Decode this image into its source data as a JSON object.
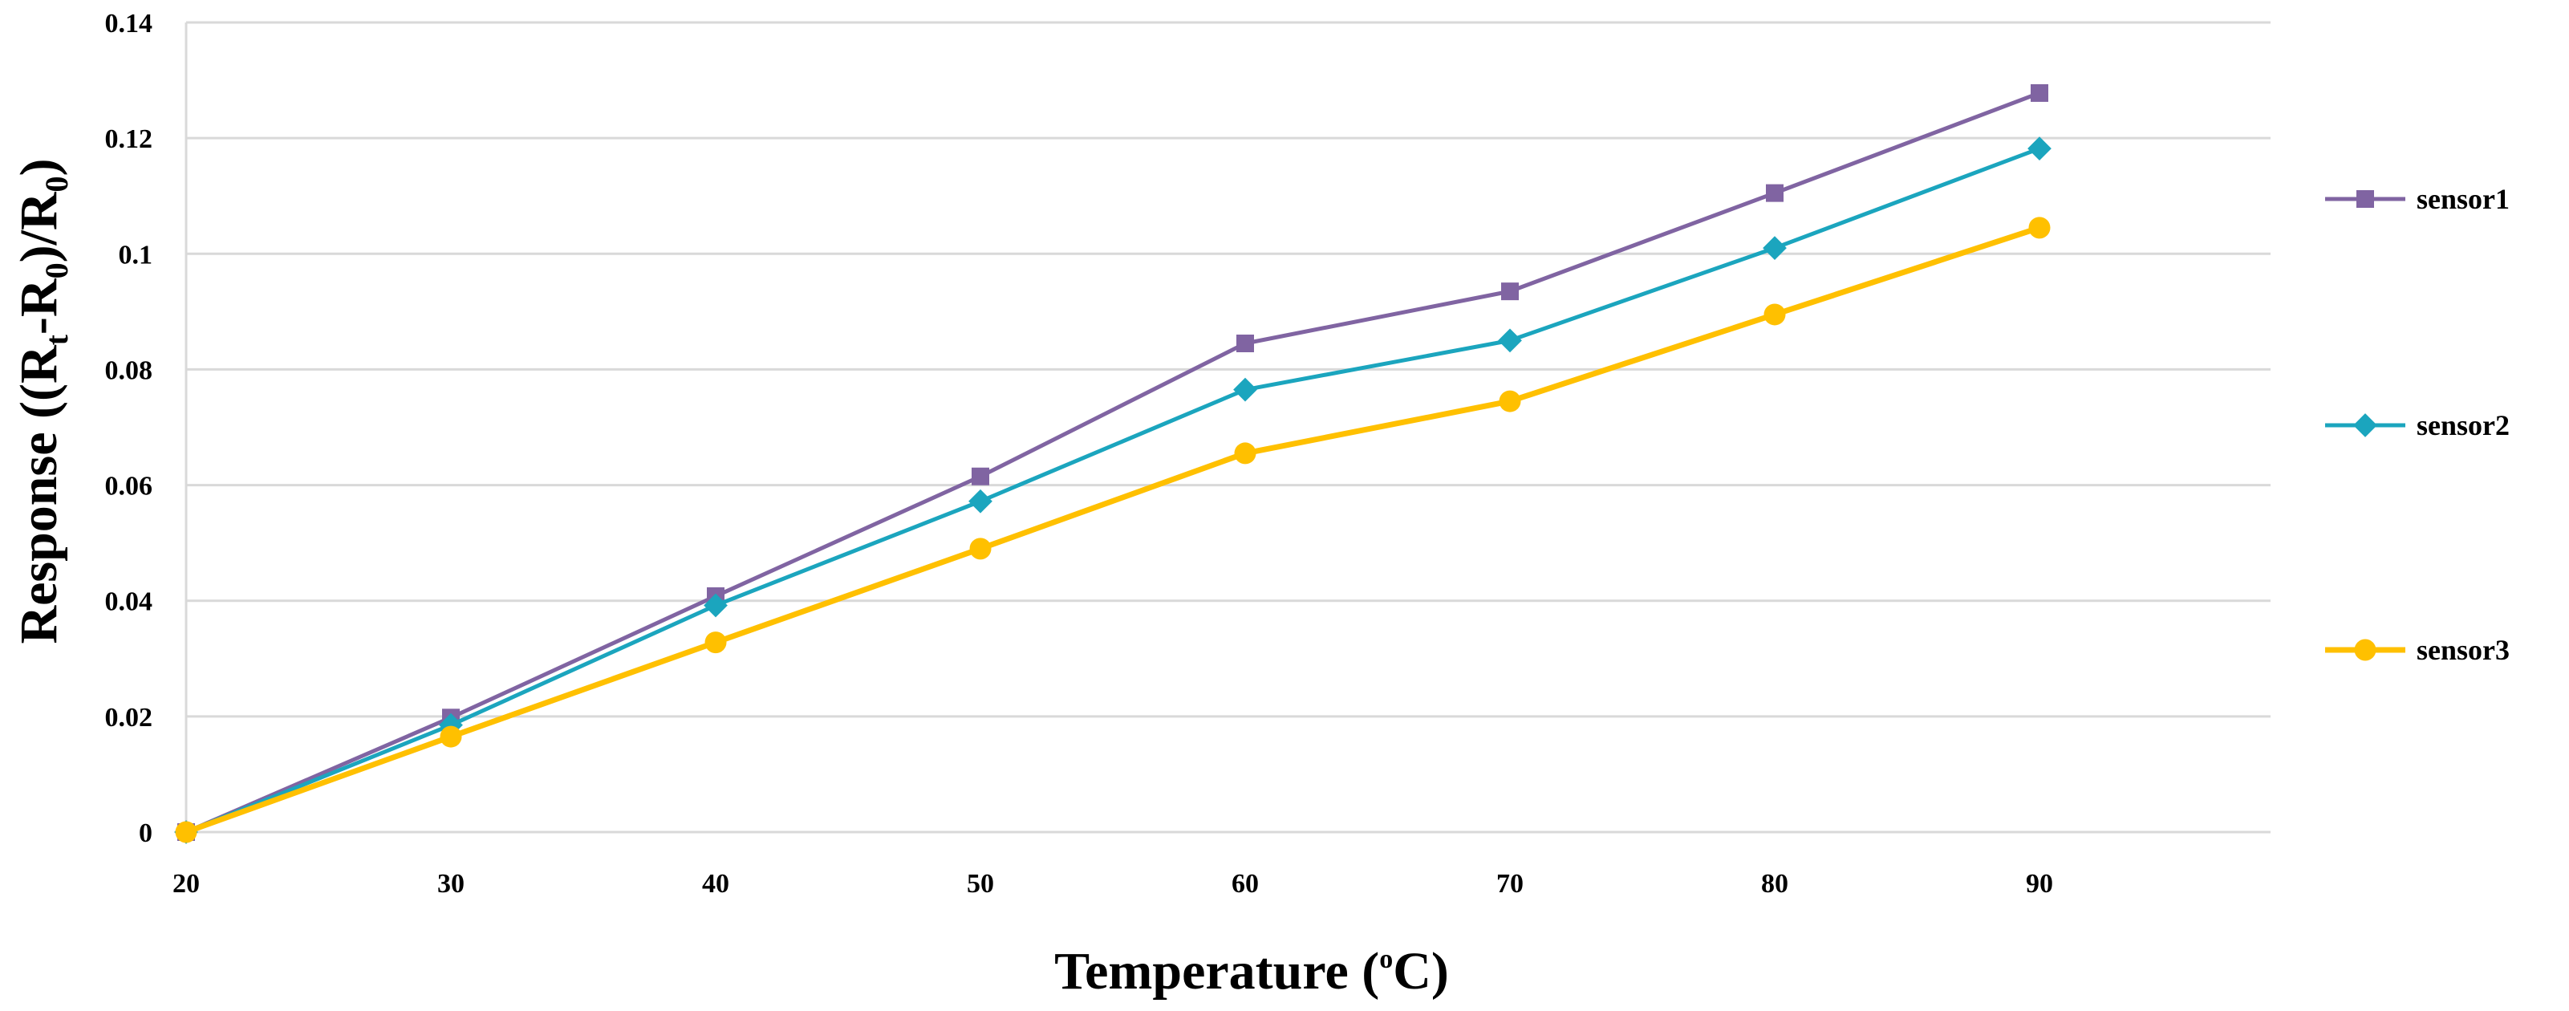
{
  "chart_data": {
    "type": "line",
    "title": "",
    "xlabel": {
      "prefix": "Temperature (",
      "degree": "o",
      "unit": "C",
      "suffix": ")"
    },
    "ylabel": {
      "text": "Response ((R",
      "sub1": "t",
      "mid": "-R",
      "sub2": "0",
      "mid2": ")/R",
      "sub3": "0",
      "end": ")"
    },
    "x_ticks": [
      "20",
      "30",
      "40",
      "50",
      "60",
      "70",
      "80",
      "90"
    ],
    "y_ticks": [
      "0",
      "0.02",
      "0.04",
      "0.06",
      "0.08",
      "0.1",
      "0.12",
      "0.14"
    ],
    "ylim": [
      0,
      0.14
    ],
    "grid": true,
    "legend_position": "right",
    "series": [
      {
        "name": "sensor1",
        "color": "#8064A2",
        "marker": "square",
        "x": [
          20,
          30,
          40,
          50,
          60,
          70,
          80,
          90
        ],
        "values": [
          0,
          0.0198,
          0.0408,
          0.0615,
          0.0845,
          0.0935,
          0.1105,
          0.1278
        ]
      },
      {
        "name": "sensor2",
        "color": "#1BA5BE",
        "marker": "diamond",
        "x": [
          20,
          30,
          40,
          50,
          60,
          70,
          80,
          90
        ],
        "values": [
          0,
          0.0185,
          0.0392,
          0.0572,
          0.0765,
          0.085,
          0.101,
          0.1182
        ]
      },
      {
        "name": "sensor3",
        "color": "#FFC000",
        "marker": "circle",
        "x": [
          20,
          30,
          40,
          50,
          60,
          70,
          80,
          90
        ],
        "values": [
          0,
          0.0165,
          0.0328,
          0.049,
          0.0655,
          0.0745,
          0.0895,
          0.1045
        ]
      }
    ]
  }
}
